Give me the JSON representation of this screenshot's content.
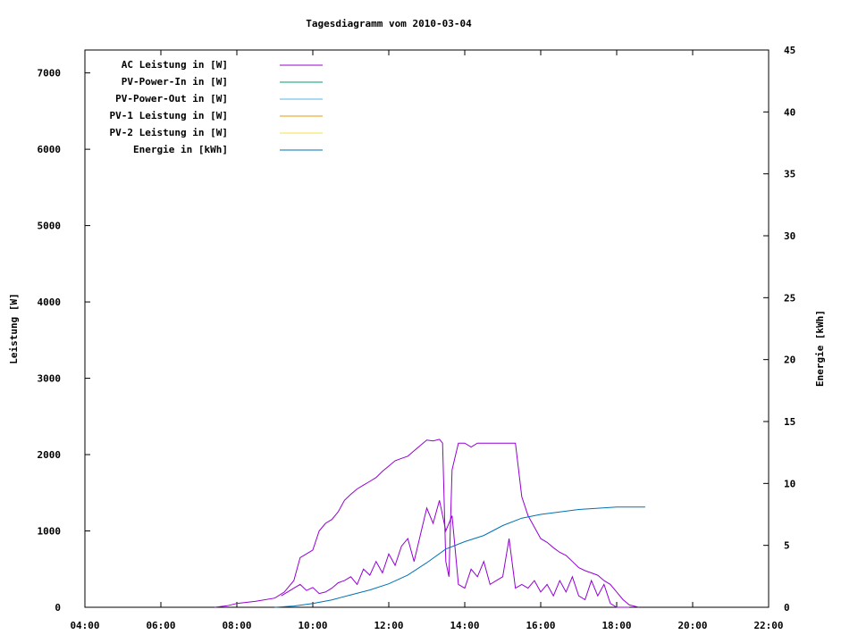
{
  "chart_data": {
    "type": "line",
    "title": "Tagesdiagramm vom 2010-03-04",
    "xlabel": "",
    "ylabel": "Leistung [W]",
    "y2label": "Energie [kWh]",
    "x_ticks": [
      "04:00",
      "06:00",
      "08:00",
      "10:00",
      "12:00",
      "14:00",
      "16:00",
      "18:00",
      "20:00",
      "22:00"
    ],
    "xlim": [
      "04:00",
      "22:00"
    ],
    "ylim": [
      0,
      7300
    ],
    "y_ticks": [
      0,
      1000,
      2000,
      3000,
      4000,
      5000,
      6000,
      7000
    ],
    "y2lim": [
      0,
      45
    ],
    "y2_ticks": [
      0,
      5,
      10,
      15,
      20,
      25,
      30,
      35,
      40,
      45
    ],
    "legend_position": "top-left",
    "colors": {
      "ac": "#9400d3",
      "pv_in": "#009e73",
      "pv_out": "#56b4e9",
      "pv1": "#e69f00",
      "pv2": "#f0e442",
      "energie": "#0072b2"
    },
    "series": [
      {
        "name": "AC Leistung in [W]",
        "axis": "left",
        "color_key": "ac",
        "x": [
          "07:25",
          "07:45",
          "08:00",
          "08:30",
          "09:00",
          "09:15",
          "09:30",
          "09:40",
          "09:50",
          "10:00",
          "10:10",
          "10:20",
          "10:30",
          "10:40",
          "10:50",
          "11:00",
          "11:10",
          "11:20",
          "11:30",
          "11:40",
          "11:50",
          "12:00",
          "12:10",
          "12:20",
          "12:30",
          "12:40",
          "12:50",
          "13:00",
          "13:10",
          "13:20",
          "13:25",
          "13:30",
          "13:35",
          "13:40",
          "13:50",
          "14:00",
          "14:10",
          "14:20",
          "14:25",
          "14:35",
          "14:45",
          "15:00",
          "15:10",
          "15:20",
          "15:30",
          "15:40",
          "15:50",
          "16:00",
          "16:10",
          "16:20",
          "16:30",
          "16:40",
          "16:50",
          "17:00",
          "17:10",
          "17:20",
          "17:30",
          "17:40",
          "17:50",
          "18:00",
          "18:10",
          "18:20",
          "18:35"
        ],
        "y": [
          0,
          20,
          50,
          80,
          120,
          200,
          350,
          650,
          700,
          750,
          1000,
          1100,
          1150,
          1250,
          1400,
          1480,
          1550,
          1600,
          1650,
          1700,
          1780,
          1850,
          1920,
          1950,
          1980,
          2050,
          2120,
          2190,
          2180,
          2200,
          2150,
          600,
          400,
          1800,
          2150,
          2150,
          2100,
          2150,
          2150,
          2150,
          2150,
          2150,
          2150,
          2150,
          1450,
          1200,
          1050,
          900,
          850,
          780,
          720,
          680,
          600,
          520,
          480,
          450,
          420,
          350,
          300,
          200,
          100,
          30,
          0
        ]
      },
      {
        "name": "AC Leistung in [W]",
        "axis": "left",
        "color_key": "ac",
        "x": [
          "09:10",
          "09:20",
          "09:30",
          "09:40",
          "09:50",
          "10:00",
          "10:10",
          "10:20",
          "10:30",
          "10:40",
          "10:50",
          "11:00",
          "11:10",
          "11:20",
          "11:30",
          "11:40",
          "11:50",
          "12:00",
          "12:10",
          "12:20",
          "12:30",
          "12:40",
          "12:50",
          "13:00",
          "13:10",
          "13:20",
          "13:30",
          "13:40",
          "13:50",
          "14:00",
          "14:10",
          "14:20",
          "14:30",
          "14:40",
          "14:50",
          "15:00",
          "15:10",
          "15:20",
          "15:30",
          "15:40",
          "15:50",
          "16:00",
          "16:10",
          "16:20",
          "16:30",
          "16:40",
          "16:50",
          "17:00",
          "17:10",
          "17:20",
          "17:30",
          "17:40",
          "17:50",
          "18:00",
          "18:10",
          "18:20"
        ],
        "y": [
          150,
          200,
          250,
          300,
          220,
          260,
          180,
          200,
          250,
          320,
          350,
          400,
          300,
          500,
          420,
          600,
          450,
          700,
          550,
          800,
          900,
          600,
          950,
          1300,
          1100,
          1400,
          1000,
          1200,
          300,
          250,
          500,
          400,
          600,
          300,
          350,
          400,
          900,
          250,
          300,
          250,
          350,
          200,
          300,
          150,
          350,
          200,
          400,
          150,
          100,
          350,
          150,
          300,
          50,
          0,
          0,
          0
        ]
      },
      {
        "name": "PV-Power-In in [W]",
        "axis": "left",
        "color_key": "pv_in",
        "x": [],
        "y": []
      },
      {
        "name": "PV-Power-Out in [W]",
        "axis": "left",
        "color_key": "pv_out",
        "x": [],
        "y": []
      },
      {
        "name": "PV-1 Leistung in [W]",
        "axis": "left",
        "color_key": "pv1",
        "x": [],
        "y": []
      },
      {
        "name": "PV-2 Leistung in [W]",
        "axis": "left",
        "color_key": "pv2",
        "x": [],
        "y": []
      },
      {
        "name": "Energie in [kWh]",
        "axis": "right",
        "color_key": "energie",
        "x": [
          "09:00",
          "09:30",
          "10:00",
          "10:30",
          "11:00",
          "11:30",
          "12:00",
          "12:30",
          "13:00",
          "13:30",
          "14:00",
          "14:30",
          "15:00",
          "15:30",
          "16:00",
          "16:30",
          "17:00",
          "17:30",
          "18:00",
          "18:30",
          "18:45"
        ],
        "y": [
          0.0,
          0.1,
          0.3,
          0.6,
          1.0,
          1.4,
          1.9,
          2.6,
          3.6,
          4.7,
          5.3,
          5.8,
          6.6,
          7.2,
          7.5,
          7.7,
          7.9,
          8.0,
          8.1,
          8.1,
          8.1
        ]
      }
    ]
  }
}
